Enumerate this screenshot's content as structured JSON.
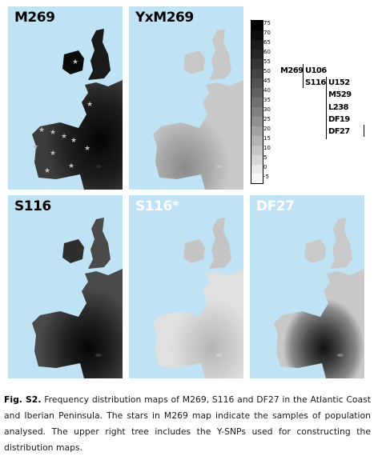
{
  "maps": {
    "m269": {
      "title": "M269"
    },
    "yxm269": {
      "title": "YxM269"
    },
    "s116": {
      "title": "S116"
    },
    "s116star": {
      "title": "S116*"
    },
    "df27": {
      "title": "DF27"
    }
  },
  "scale": {
    "ticks": [
      "75",
      "70",
      "65",
      "60",
      "55",
      "50",
      "45",
      "40",
      "35",
      "30",
      "25",
      "20",
      "15",
      "10",
      "5",
      "0",
      "-5"
    ]
  },
  "tree": {
    "nodes": [
      "M269",
      "U106",
      "S116",
      "U152",
      "M529",
      "L238",
      "DF19",
      "DF27"
    ]
  },
  "caption": {
    "label": "Fig. S2.",
    "text": " Frequency distribution maps of M269, S116 and DF27 in the Atlantic Coast and Iberian Peninsula. The stars in M269 map indicate the samples of population analysed. The upper right tree includes the Y-SNPs used for constructing the distribution maps."
  },
  "colors": {
    "sea": "#bfe3f5",
    "land_light": "#d0d0d0",
    "land_dark": "#111111"
  }
}
